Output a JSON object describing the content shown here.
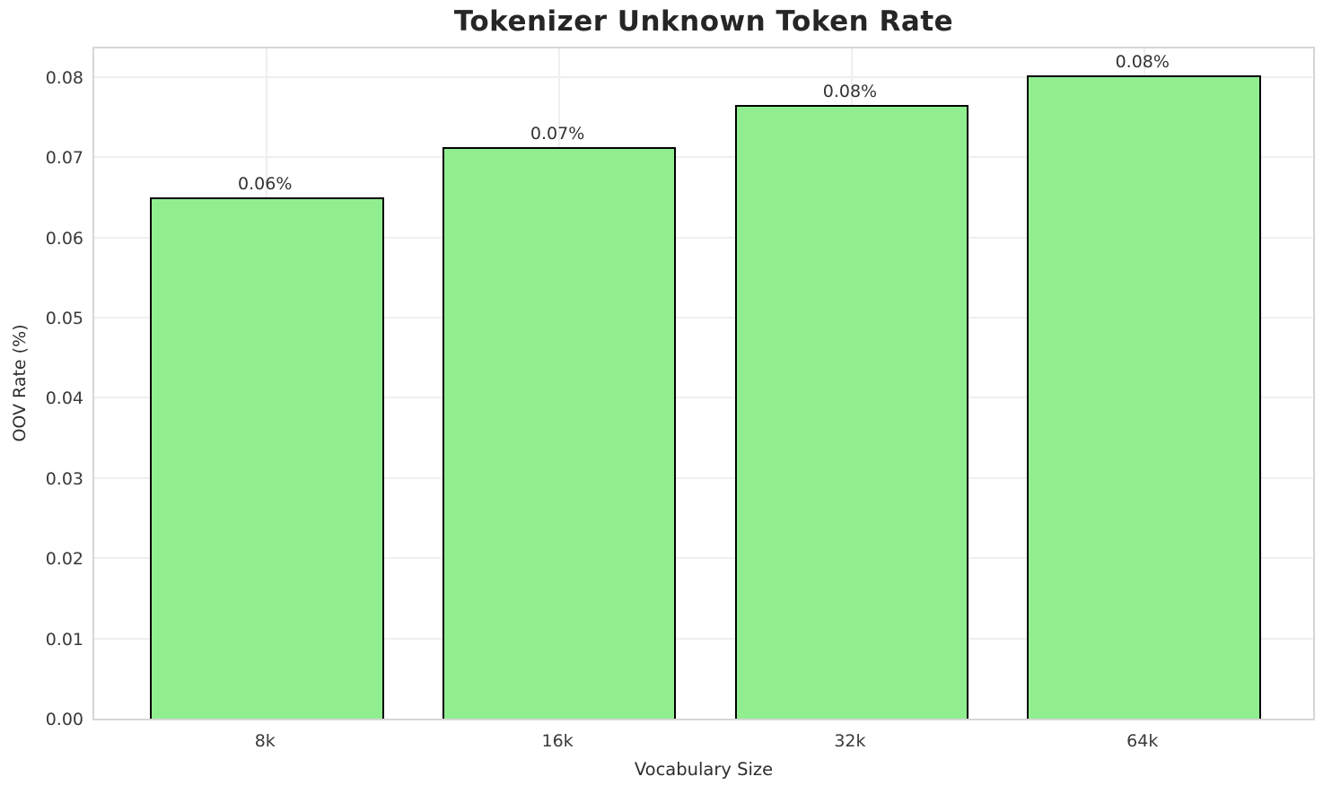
{
  "chart_data": {
    "type": "bar",
    "title": "Tokenizer Unknown Token Rate",
    "xlabel": "Vocabulary Size",
    "ylabel": "OOV Rate (%)",
    "categories": [
      "8k",
      "16k",
      "32k",
      "64k"
    ],
    "values": [
      0.065,
      0.0712,
      0.0765,
      0.0802
    ],
    "bar_labels": [
      "0.06%",
      "0.07%",
      "0.08%",
      "0.08%"
    ],
    "yticks": [
      0.0,
      0.01,
      0.02,
      0.03,
      0.04,
      0.05,
      0.06,
      0.07,
      0.08
    ],
    "ytick_labels": [
      "0.00",
      "0.01",
      "0.02",
      "0.03",
      "0.04",
      "0.05",
      "0.06",
      "0.07",
      "0.08"
    ],
    "ylim": [
      0,
      0.084
    ],
    "grid": true,
    "legend": false,
    "bar_color": "#90EE90",
    "bar_edge_color": "#000000",
    "gridline_color": "#efefef",
    "spine_color": "#d6d6d6"
  }
}
